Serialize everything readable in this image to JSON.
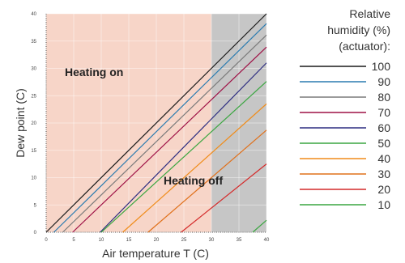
{
  "chart_data": {
    "type": "line",
    "xlabel": "Air temperature T (C)",
    "ylabel": "Dew point (C)",
    "xlim": [
      0,
      40
    ],
    "ylim": [
      0,
      40
    ],
    "xticks": [
      0,
      5,
      10,
      15,
      20,
      25,
      30,
      35,
      40
    ],
    "yticks": [
      0,
      5,
      10,
      15,
      20,
      25,
      30,
      35,
      40
    ],
    "grid": true,
    "legend_title_lines": [
      "Relative",
      "humidity (%)",
      "(actuator):"
    ],
    "legend_position": "right",
    "regions": [
      {
        "label": "Heating on",
        "x_range": [
          0,
          30
        ],
        "color": "#f7d5c8"
      },
      {
        "label": "Heating off",
        "x_range": [
          30,
          40
        ],
        "color": "#c6c6c6"
      }
    ],
    "series": [
      {
        "name": "100",
        "color": "#1a1a1a",
        "x": [
          0,
          40
        ],
        "y": [
          0,
          40
        ]
      },
      {
        "name": "90",
        "color": "#2a7bb0",
        "x": [
          1.4,
          40
        ],
        "y": [
          0,
          38.2
        ]
      },
      {
        "name": "80",
        "color": "#7a7a7a",
        "x": [
          3.0,
          40
        ],
        "y": [
          0,
          36.1
        ]
      },
      {
        "name": "70",
        "color": "#9e1045",
        "x": [
          4.8,
          40
        ],
        "y": [
          0,
          33.9
        ]
      },
      {
        "name": "60",
        "color": "#2d2d80",
        "x": [
          9.8,
          40
        ],
        "y": [
          0,
          31.0
        ]
      },
      {
        "name": "50",
        "color": "#3aa640",
        "x": [
          10.0,
          40
        ],
        "y": [
          0,
          27.6
        ]
      },
      {
        "name": "40",
        "color": "#f08c1a",
        "x": [
          13.9,
          40
        ],
        "y": [
          0,
          23.5
        ]
      },
      {
        "name": "30",
        "color": "#e0701a",
        "x": [
          18.5,
          40
        ],
        "y": [
          0,
          18.7
        ]
      },
      {
        "name": "20",
        "color": "#d42a2a",
        "x": [
          24.5,
          40
        ],
        "y": [
          0,
          12.5
        ]
      },
      {
        "name": "10",
        "color": "#3aa640",
        "x": [
          37.5,
          40
        ],
        "y": [
          0,
          2.2
        ]
      }
    ]
  }
}
